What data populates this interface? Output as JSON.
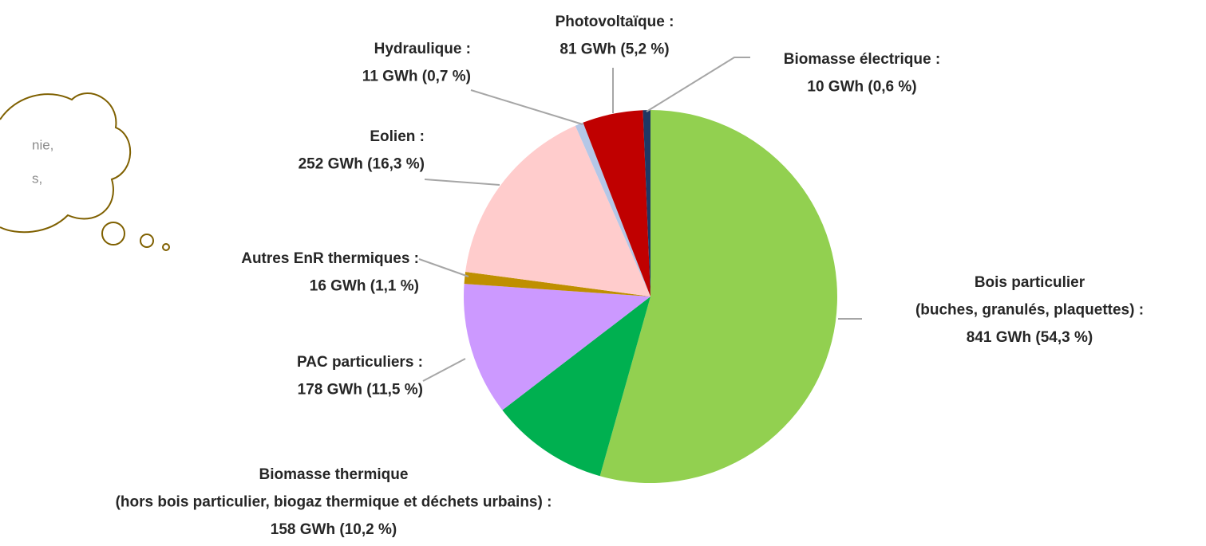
{
  "chart_data": {
    "type": "pie",
    "categories": [
      [
        "Bois particulier",
        "(buches, granulés, plaquettes) :"
      ],
      [
        "Biomasse thermique",
        "(hors bois particulier, biogaz thermique et déchets urbains) :"
      ],
      [
        "PAC particuliers :"
      ],
      [
        "Autres EnR thermiques :"
      ],
      [
        "Eolien :"
      ],
      [
        "Hydraulique :"
      ],
      [
        "Photovoltaïque :"
      ],
      [
        "Biomasse électrique :"
      ]
    ],
    "values": [
      841,
      158,
      178,
      16,
      252,
      11,
      81,
      10
    ],
    "value_labels": [
      "841 GWh (54,3 %)",
      "158 GWh (10,2 %)",
      "178 GWh (11,5 %)",
      "16 GWh (1,1 %)",
      "252 GWh (16,3 %)",
      "11 GWh (0,7 %)",
      "81 GWh (5,2 %)",
      "10 GWh (0,6 %)"
    ],
    "colors": [
      "#92d050",
      "#00b050",
      "#cc99ff",
      "#bf8f00",
      "#ffcccc",
      "#b4c7e7",
      "#c00000",
      "#1f3864"
    ],
    "annotations": [
      "nie,",
      "s,"
    ]
  }
}
